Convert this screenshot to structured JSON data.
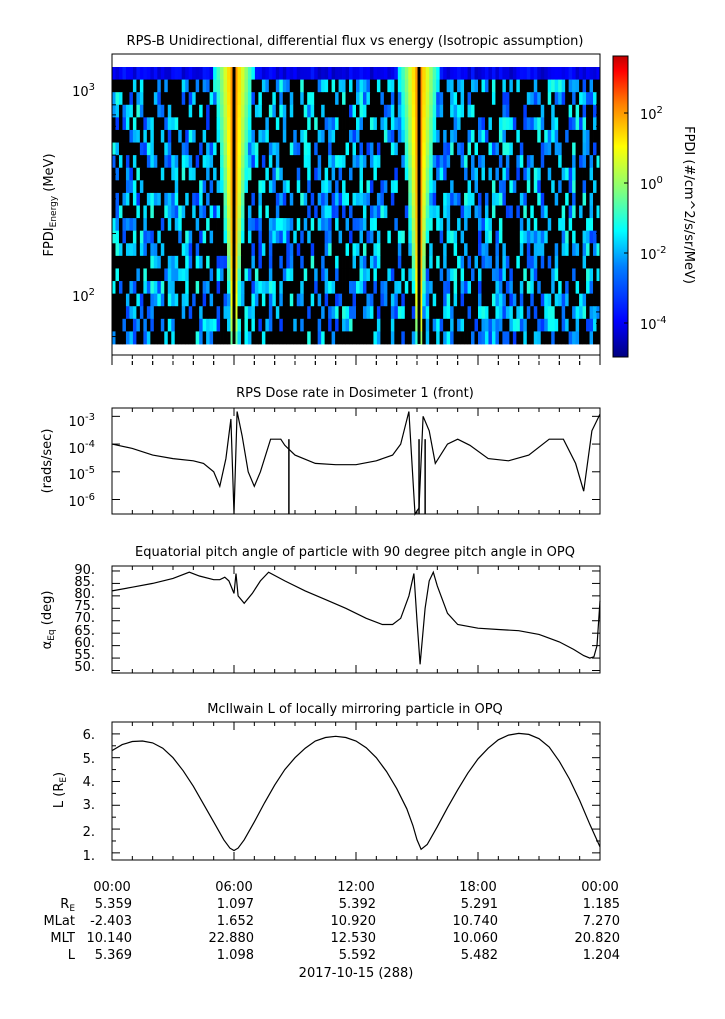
{
  "panels": {
    "spectrogram": {
      "title": "RPS-B  Unidirectional, differential flux vs energy (Isotropic assumption)",
      "ylabel_main": "FPDI",
      "ylabel_sub": "Energy",
      "ylabel_unit": " (MeV)",
      "ytick_labels": [
        {
          "base": "10",
          "exp": "3"
        },
        {
          "base": "10",
          "exp": "2"
        }
      ]
    },
    "colorbar": {
      "label": "FPDI (#/cm^2/s/sr/MeV)",
      "tick_labels": [
        {
          "base": "10",
          "exp": "2"
        },
        {
          "base": "10",
          "exp": "0"
        },
        {
          "base": "10",
          "exp": "-2"
        },
        {
          "base": "10",
          "exp": "-4"
        }
      ],
      "colormap": [
        "#00007f",
        "#0000ff",
        "#007fff",
        "#00ffff",
        "#7fff7f",
        "#ffff00",
        "#ff7f00",
        "#ff0000",
        "#7f0000"
      ]
    },
    "dose": {
      "title": "RPS  Dose rate in Dosimeter 1 (front)",
      "ylabel": "(rads/sec)",
      "ytick_labels": [
        {
          "base": "10",
          "exp": "-3"
        },
        {
          "base": "10",
          "exp": "-4"
        },
        {
          "base": "10",
          "exp": "-5"
        },
        {
          "base": "10",
          "exp": "-6"
        }
      ]
    },
    "pitch": {
      "title": "Equatorial pitch angle of particle with 90 degree pitch angle in OPQ",
      "ylabel_main": "α",
      "ylabel_sub": "Eq",
      "ylabel_unit": " (deg)",
      "ytick_labels": [
        "90.",
        "85.",
        "80.",
        "75.",
        "70.",
        "65.",
        "60.",
        "55.",
        "50."
      ]
    },
    "lshell": {
      "title": "McIlwain L of locally mirroring particle in OPQ",
      "ylabel_main": "L (R",
      "ylabel_sub": "E",
      "ylabel_end": ")",
      "ytick_labels": [
        "6.",
        "5.",
        "4.",
        "3.",
        "2.",
        "1."
      ]
    }
  },
  "x_axis": {
    "tick_labels": [
      "00:00",
      "06:00",
      "12:00",
      "18:00",
      "00:00"
    ],
    "date_label": "2017-10-15 (288)"
  },
  "ephemeris": {
    "rows": [
      {
        "name_main": "R",
        "name_sub": "E",
        "values": [
          "5.359",
          "1.097",
          "5.392",
          "5.291",
          "1.185"
        ]
      },
      {
        "name_main": "MLat",
        "name_sub": "",
        "values": [
          "-2.403",
          "1.652",
          "10.920",
          "10.740",
          "7.270"
        ]
      },
      {
        "name_main": "MLT",
        "name_sub": "",
        "values": [
          "10.140",
          "22.880",
          "12.530",
          "10.060",
          "20.820"
        ]
      },
      {
        "name_main": "L",
        "name_sub": "",
        "values": [
          "5.369",
          "1.098",
          "5.592",
          "5.482",
          "1.204"
        ]
      }
    ]
  },
  "chart_data": [
    {
      "type": "heatmap",
      "title": "RPS-B  Unidirectional, differential flux vs energy (Isotropic assumption)",
      "x_range_hours": [
        0,
        24
      ],
      "y_scale": "log",
      "y_range_mev": [
        55,
        1400
      ],
      "color_scale": "log",
      "color_range": [
        1e-05,
        3000
      ],
      "band_center_hours": [
        6.0,
        15.1
      ],
      "band_peak_flux": 1.0
    },
    {
      "type": "line",
      "title": "RPS  Dose rate in Dosimeter 1 (front)",
      "y_scale": "log",
      "ylim": [
        3e-07,
        0.002
      ],
      "x_hours": [
        0,
        1.0,
        2.0,
        3.0,
        4.0,
        4.5,
        5.0,
        5.3,
        5.6,
        5.85,
        6.0,
        6.15,
        6.4,
        6.7,
        7.0,
        7.3,
        7.8,
        8.3,
        8.5,
        9.0,
        10.0,
        11.0,
        12.0,
        13.0,
        13.8,
        14.2,
        14.6,
        14.9,
        15.1,
        15.3,
        15.6,
        15.9,
        16.5,
        17.0,
        17.6,
        18.5,
        19.5,
        20.5,
        21.5,
        22.2,
        22.8,
        23.2,
        23.6,
        24.0
      ],
      "y": [
        0.0001,
        7e-05,
        4e-05,
        3e-05,
        2.5e-05,
        2e-05,
        1e-05,
        3e-06,
        3e-05,
        0.0008,
        3e-07,
        0.0015,
        0.0002,
        1e-05,
        3e-06,
        1e-05,
        0.00015,
        0.00015,
        9e-05,
        4e-05,
        2e-05,
        1.8e-05,
        1.8e-05,
        2.5e-05,
        4e-05,
        0.0001,
        0.0015,
        3e-07,
        5e-07,
        0.001,
        0.0003,
        2e-05,
        0.0001,
        0.00015,
        9e-05,
        3e-05,
        2.5e-05,
        4e-05,
        0.00015,
        0.00015,
        2e-05,
        2e-06,
        0.0003,
        0.0012
      ],
      "spikes_hours": [
        8.7,
        15.1,
        15.4
      ]
    },
    {
      "type": "line",
      "title": "Equatorial pitch angle of particle with 90 degree pitch angle in OPQ",
      "ylim": [
        49,
        92
      ],
      "x_hours": [
        0,
        1,
        2,
        3,
        3.8,
        4.3,
        5.0,
        5.3,
        5.55,
        5.75,
        6.0,
        6.1,
        6.2,
        6.5,
        6.9,
        7.3,
        7.7,
        8.5,
        9.5,
        10.5,
        11.5,
        12.5,
        13.3,
        13.8,
        14.2,
        14.6,
        14.85,
        15.0,
        15.15,
        15.4,
        15.6,
        15.8,
        16.0,
        16.5,
        17.0,
        18.0,
        19.0,
        20.0,
        21.0,
        22.0,
        22.7,
        23.2,
        23.5,
        23.7,
        23.85,
        24.0
      ],
      "y": [
        82,
        83.5,
        85,
        87,
        89.5,
        88,
        86.5,
        86.5,
        87.5,
        86,
        81,
        89,
        80,
        77,
        81,
        86,
        89.5,
        86,
        82,
        78.5,
        75,
        71,
        68.5,
        68.5,
        71,
        80,
        89,
        70,
        52.5,
        75,
        86,
        89.5,
        84,
        73,
        68.5,
        67,
        66.5,
        66,
        64.5,
        61.5,
        58.5,
        56,
        55,
        55.5,
        60,
        78
      ]
    },
    {
      "type": "line",
      "title": "McIlwain L of locally mirroring particle in OPQ",
      "ylim": [
        0.7,
        6.5
      ],
      "x_hours": [
        0,
        0.5,
        1.0,
        1.5,
        2.0,
        2.5,
        3.0,
        3.5,
        4.0,
        4.5,
        5.0,
        5.5,
        5.8,
        6.0,
        6.2,
        6.5,
        7.0,
        7.5,
        8.0,
        8.5,
        9.0,
        9.5,
        10.0,
        10.5,
        11.0,
        11.5,
        12.0,
        12.5,
        13.0,
        13.5,
        14.0,
        14.5,
        14.8,
        15.0,
        15.2,
        15.5,
        16.0,
        16.5,
        17.0,
        17.5,
        18.0,
        18.5,
        19.0,
        19.5,
        20.0,
        20.5,
        21.0,
        21.5,
        22.0,
        22.5,
        23.0,
        23.5,
        24.0
      ],
      "y": [
        5.3,
        5.55,
        5.68,
        5.7,
        5.62,
        5.4,
        5.0,
        4.45,
        3.8,
        3.05,
        2.3,
        1.55,
        1.2,
        1.1,
        1.2,
        1.55,
        2.3,
        3.1,
        3.85,
        4.5,
        5.0,
        5.4,
        5.7,
        5.85,
        5.9,
        5.85,
        5.7,
        5.42,
        5.0,
        4.42,
        3.7,
        2.85,
        2.15,
        1.55,
        1.15,
        1.35,
        2.1,
        2.9,
        3.65,
        4.35,
        4.95,
        5.4,
        5.75,
        5.95,
        6.02,
        5.98,
        5.8,
        5.45,
        4.85,
        4.1,
        3.2,
        2.2,
        1.25
      ]
    }
  ]
}
